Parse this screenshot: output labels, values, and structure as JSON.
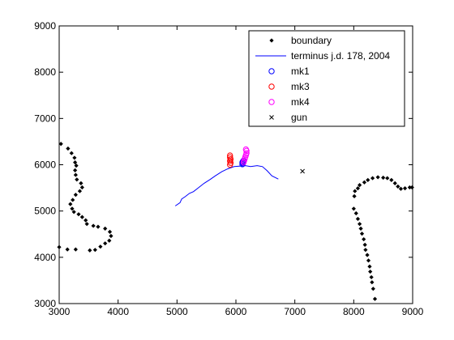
{
  "chart_data": {
    "type": "scatter",
    "xlim": [
      3000,
      9000
    ],
    "ylim": [
      3000,
      9000
    ],
    "xticks": [
      3000,
      4000,
      5000,
      6000,
      7000,
      8000,
      9000
    ],
    "yticks": [
      3000,
      4000,
      5000,
      6000,
      7000,
      8000,
      9000
    ],
    "grid": false,
    "legend_position": "top-right",
    "series": [
      {
        "name": "boundary",
        "marker": "dot",
        "color": "#000000",
        "groups": [
          [
            [
              3030,
              6450
            ],
            [
              3150,
              6350
            ],
            [
              3210,
              6250
            ],
            [
              3260,
              6150
            ],
            [
              3270,
              6050
            ],
            [
              3290,
              5980
            ],
            [
              3270,
              5880
            ],
            [
              3280,
              5780
            ],
            [
              3300,
              5680
            ],
            [
              3370,
              5600
            ],
            [
              3390,
              5510
            ],
            [
              3350,
              5430
            ],
            [
              3280,
              5350
            ],
            [
              3230,
              5240
            ],
            [
              3190,
              5150
            ],
            [
              3220,
              5050
            ],
            [
              3250,
              4980
            ],
            [
              3330,
              4930
            ],
            [
              3390,
              4870
            ],
            [
              3450,
              4800
            ],
            [
              3470,
              4720
            ],
            [
              3580,
              4680
            ],
            [
              3660,
              4660
            ],
            [
              3780,
              4620
            ],
            [
              3860,
              4550
            ],
            [
              3880,
              4460
            ],
            [
              3850,
              4360
            ],
            [
              3780,
              4300
            ],
            [
              3700,
              4230
            ],
            [
              3610,
              4160
            ],
            [
              3520,
              4150
            ],
            [
              3280,
              4170
            ],
            [
              3140,
              4170
            ],
            [
              3000,
              4220
            ]
          ],
          [
            [
              8010,
              5320
            ],
            [
              8020,
              5430
            ],
            [
              8070,
              5490
            ],
            [
              8100,
              5560
            ],
            [
              8180,
              5620
            ],
            [
              8240,
              5670
            ],
            [
              8320,
              5710
            ],
            [
              8410,
              5730
            ],
            [
              8500,
              5720
            ],
            [
              8570,
              5710
            ],
            [
              8640,
              5670
            ],
            [
              8700,
              5600
            ],
            [
              8750,
              5530
            ],
            [
              8800,
              5480
            ],
            [
              8870,
              5490
            ],
            [
              8950,
              5510
            ],
            [
              8990,
              5510
            ]
          ],
          [
            [
              8000,
              5050
            ],
            [
              8040,
              4950
            ],
            [
              8070,
              4830
            ],
            [
              8100,
              4720
            ],
            [
              8120,
              4620
            ],
            [
              8140,
              4510
            ],
            [
              8170,
              4390
            ],
            [
              8190,
              4270
            ],
            [
              8200,
              4160
            ],
            [
              8230,
              4050
            ],
            [
              8250,
              3930
            ],
            [
              8270,
              3800
            ],
            [
              8280,
              3690
            ],
            [
              8300,
              3570
            ],
            [
              8310,
              3460
            ],
            [
              8330,
              3320
            ],
            [
              8360,
              3100
            ]
          ]
        ]
      },
      {
        "name": "terminus j.d. 178, 2004",
        "marker": "line",
        "color": "#0000ff",
        "points": [
          [
            4970,
            5110
          ],
          [
            5050,
            5180
          ],
          [
            5080,
            5260
          ],
          [
            5140,
            5310
          ],
          [
            5210,
            5380
          ],
          [
            5280,
            5420
          ],
          [
            5360,
            5500
          ],
          [
            5460,
            5600
          ],
          [
            5560,
            5680
          ],
          [
            5650,
            5760
          ],
          [
            5760,
            5850
          ],
          [
            5860,
            5910
          ],
          [
            5970,
            5960
          ],
          [
            6060,
            5970
          ],
          [
            6160,
            5980
          ],
          [
            6250,
            5960
          ],
          [
            6360,
            5980
          ],
          [
            6450,
            5960
          ],
          [
            6530,
            5870
          ],
          [
            6610,
            5760
          ],
          [
            6720,
            5690
          ]
        ]
      },
      {
        "name": "mk1",
        "marker": "circle",
        "color": "#0000ff",
        "points": [
          [
            6110,
            6010
          ],
          [
            6120,
            6030
          ],
          [
            6110,
            6050
          ],
          [
            6120,
            6070
          ],
          [
            6130,
            6090
          ]
        ]
      },
      {
        "name": "mk3",
        "marker": "circle",
        "color": "#ff0000",
        "points": [
          [
            5900,
            6200
          ],
          [
            5900,
            6160
          ],
          [
            5910,
            6120
          ],
          [
            5900,
            6080
          ],
          [
            5910,
            6040
          ],
          [
            5900,
            6000
          ]
        ]
      },
      {
        "name": "mk4",
        "marker": "circle",
        "color": "#ff00ff",
        "points": [
          [
            6130,
            6050
          ],
          [
            6140,
            6090
          ],
          [
            6150,
            6130
          ],
          [
            6160,
            6170
          ],
          [
            6170,
            6210
          ],
          [
            6180,
            6250
          ],
          [
            6180,
            6300
          ],
          [
            6170,
            6330
          ]
        ]
      },
      {
        "name": "gun",
        "marker": "x",
        "color": "#000000",
        "points": [
          [
            7130,
            5860
          ]
        ]
      }
    ]
  }
}
